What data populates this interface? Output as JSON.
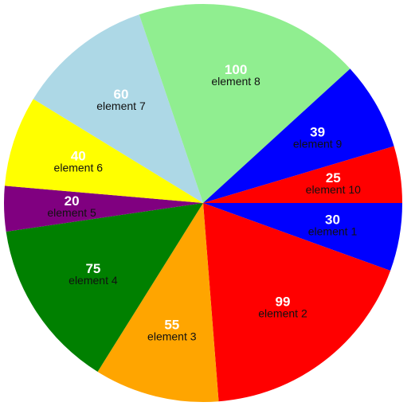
{
  "chart_data": {
    "type": "pie",
    "start_angle_deg": 0,
    "direction": "clockwise",
    "slices": [
      {
        "label": "element 1",
        "value": 30,
        "color": "#0000ff"
      },
      {
        "label": "element 2",
        "value": 99,
        "color": "#ff0000"
      },
      {
        "label": "element 3",
        "value": 55,
        "color": "#ffa500"
      },
      {
        "label": "element 4",
        "value": 75,
        "color": "#008000"
      },
      {
        "label": "element 5",
        "value": 20,
        "color": "#800080"
      },
      {
        "label": "element 6",
        "value": 40,
        "color": "#ffff00"
      },
      {
        "label": "element 7",
        "value": 60,
        "color": "#add8e6"
      },
      {
        "label": "element 8",
        "value": 100,
        "color": "#90ee90"
      },
      {
        "label": "element 9",
        "value": 39,
        "color": "#0000ff"
      },
      {
        "label": "element 10",
        "value": 25,
        "color": "#ff0000"
      }
    ]
  }
}
